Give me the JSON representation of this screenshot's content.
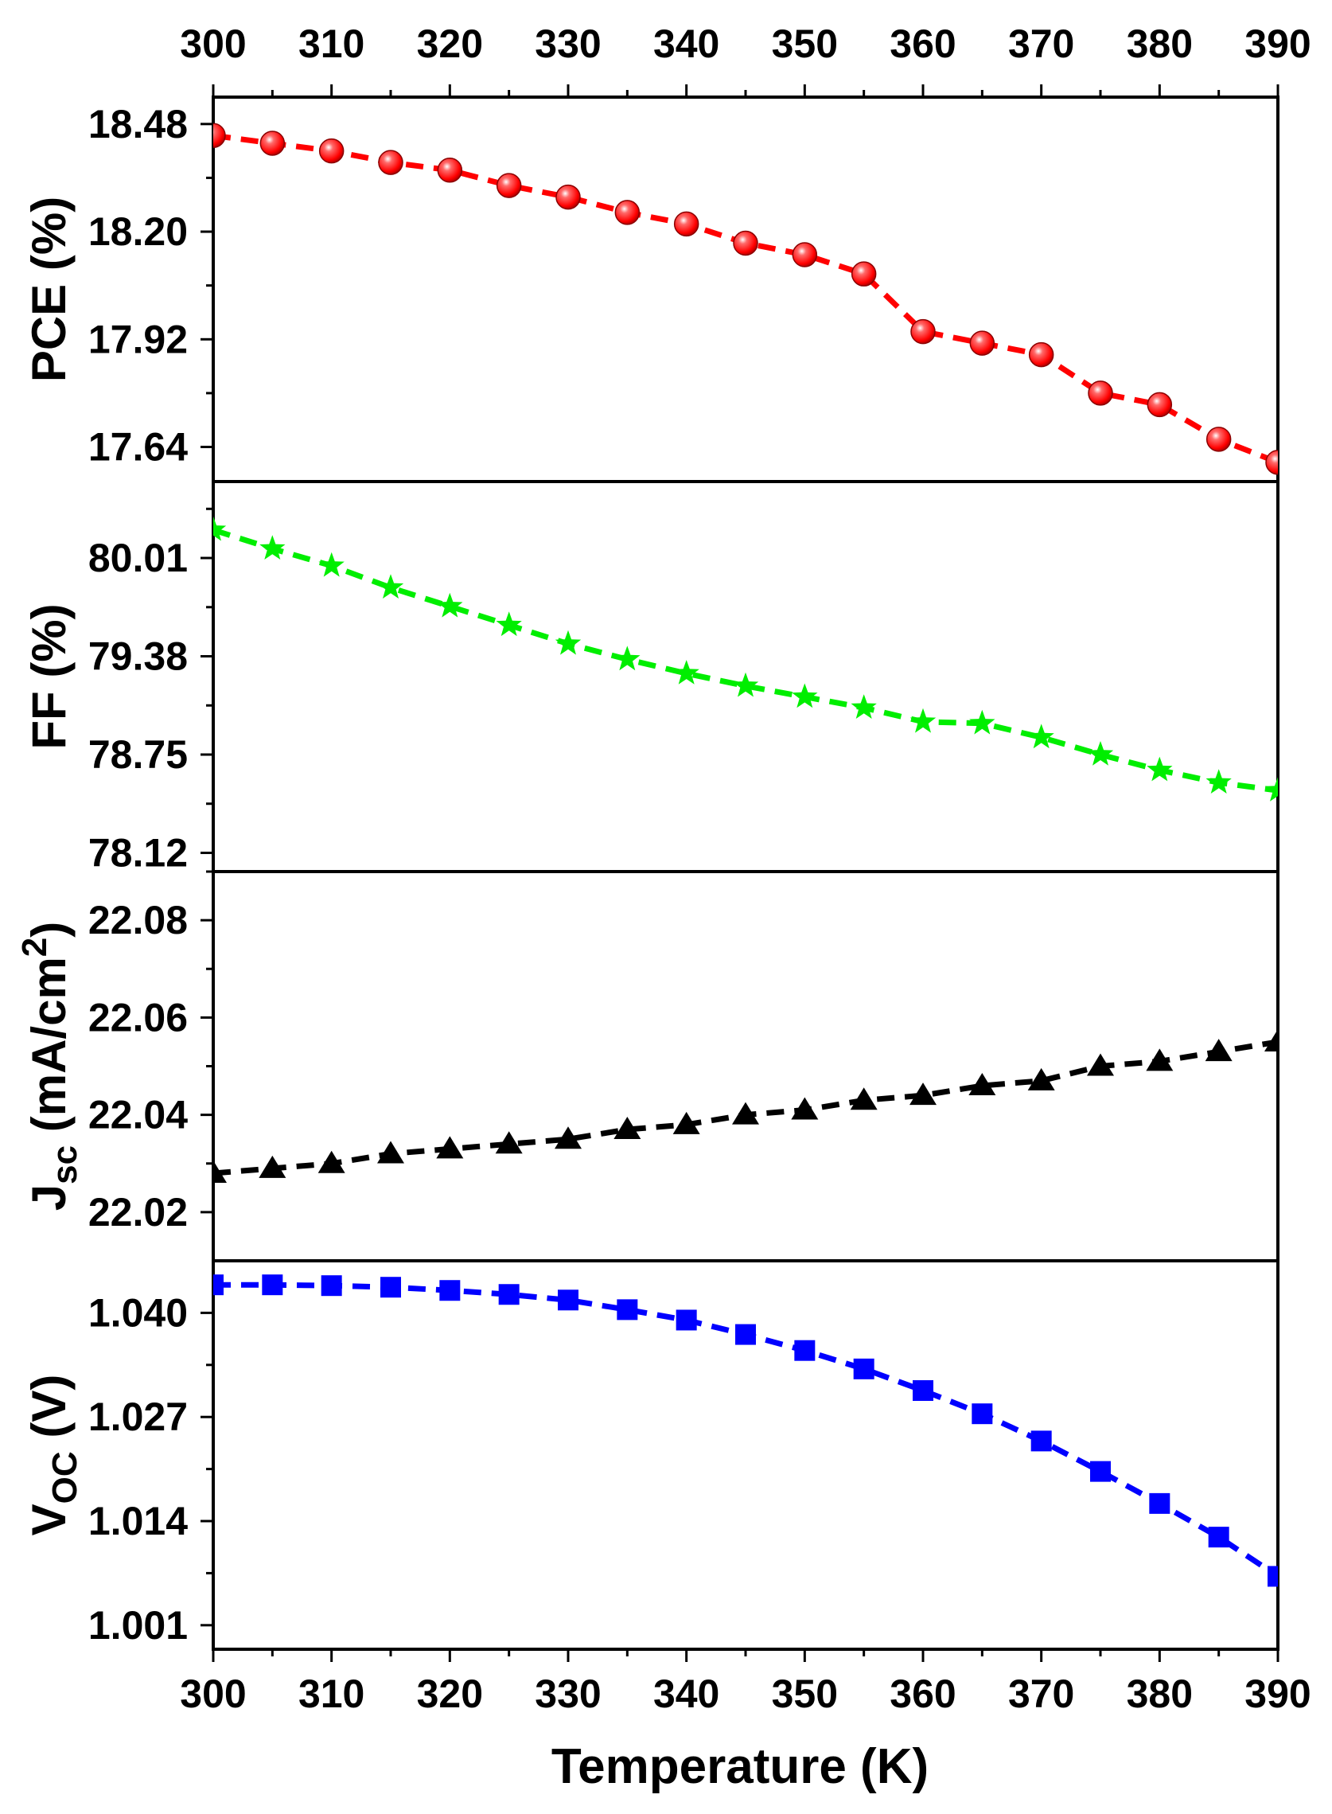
{
  "chart_data": {
    "type": "line",
    "x": [
      300,
      305,
      310,
      315,
      320,
      325,
      330,
      335,
      340,
      345,
      350,
      355,
      360,
      365,
      370,
      375,
      380,
      385,
      390
    ],
    "xlabel": "Temperature (K)",
    "xlim": [
      300,
      390
    ],
    "xticks": [
      "300",
      "310",
      "320",
      "330",
      "340",
      "350",
      "360",
      "370",
      "380",
      "390"
    ],
    "grid": false,
    "panels": [
      {
        "key": "pce",
        "ylabel": "PCE (%)",
        "ylim": [
          17.55,
          18.55
        ],
        "yticks": [
          "17.64",
          "17.92",
          "18.20",
          "18.48"
        ],
        "marker": "sphere",
        "color": "#ff0000",
        "values": [
          18.45,
          18.43,
          18.41,
          18.38,
          18.36,
          18.32,
          18.29,
          18.25,
          18.22,
          18.17,
          18.14,
          18.09,
          17.94,
          17.91,
          17.88,
          17.78,
          17.75,
          17.66,
          17.6
        ]
      },
      {
        "key": "ff",
        "ylabel": "FF (%)",
        "ylim": [
          78.0,
          80.5
        ],
        "yticks": [
          "78.12",
          "78.75",
          "79.38",
          "80.01"
        ],
        "marker": "star",
        "color": "#00ee00",
        "values": [
          80.19,
          80.07,
          79.96,
          79.82,
          79.7,
          79.58,
          79.46,
          79.36,
          79.27,
          79.19,
          79.12,
          79.05,
          78.96,
          78.95,
          78.86,
          78.75,
          78.65,
          78.57,
          78.52
        ]
      },
      {
        "key": "jsc",
        "ylabel_main": "J",
        "ylabel_sub": "sc",
        "ylabel_rest": "(mA/cm",
        "ylabel_sup": "2",
        "ylabel_end": ")",
        "ylim": [
          22.01,
          22.09
        ],
        "yticks": [
          "22.02",
          "22.04",
          "22.06",
          "22.08"
        ],
        "marker": "triangle",
        "color": "#000000",
        "values": [
          22.028,
          22.029,
          22.03,
          22.032,
          22.033,
          22.034,
          22.035,
          22.037,
          22.038,
          22.04,
          22.041,
          22.043,
          22.044,
          22.046,
          22.047,
          22.05,
          22.051,
          22.053,
          22.055
        ]
      },
      {
        "key": "voc",
        "ylabel_main": "V",
        "ylabel_sub": "OC",
        "ylabel_end": "(V)",
        "ylim": [
          0.998,
          1.0465
        ],
        "yticks": [
          "1.001",
          "1.014",
          "1.027",
          "1.040"
        ],
        "marker": "square",
        "color": "#0000ff",
        "values": [
          1.0435,
          1.0435,
          1.0434,
          1.0432,
          1.0428,
          1.0423,
          1.0416,
          1.0404,
          1.0391,
          1.0373,
          1.0353,
          1.033,
          1.0303,
          1.0274,
          1.024,
          1.0202,
          1.0162,
          1.012,
          1.0071
        ]
      }
    ]
  }
}
